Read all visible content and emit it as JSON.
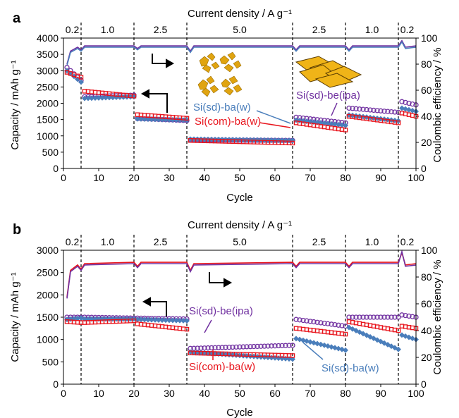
{
  "colors": {
    "purple": "#7030a0",
    "blue": "#4a7ebb",
    "red": "#e8141c",
    "black": "#000000"
  },
  "chart_data": [
    {
      "type": "scatter",
      "panel_label": "a",
      "top_axis_title": "Current density / A g⁻¹",
      "xlabel": "Cycle",
      "ylabel": "Capacity / mAh g⁻¹",
      "y2label": "Coulombic efficiency / %",
      "xlim": [
        0,
        100
      ],
      "ylim": [
        0,
        4000
      ],
      "y2lim": [
        0,
        100
      ],
      "x_ticks": [
        0,
        10,
        20,
        30,
        40,
        50,
        60,
        70,
        80,
        90,
        100
      ],
      "y_ticks": [
        0,
        500,
        1000,
        1500,
        2000,
        2500,
        3000,
        3500,
        4000
      ],
      "y2_ticks": [
        0,
        20,
        40,
        60,
        80,
        100
      ],
      "segment_boundaries": [
        5,
        20,
        35,
        65,
        80,
        95
      ],
      "segments": [
        {
          "label": "0.2",
          "x": 2.5
        },
        {
          "label": "1.0",
          "x": 12.5
        },
        {
          "label": "2.5",
          "x": 27.5
        },
        {
          "label": "5.0",
          "x": 50
        },
        {
          "label": "2.5",
          "x": 72.5
        },
        {
          "label": "1.0",
          "x": 87.5
        },
        {
          "label": "0.2",
          "x": 97.5
        }
      ],
      "series": [
        {
          "name": "Si(sd)-be(ipa)",
          "color_key": "purple",
          "marker": "circle",
          "segments": [
            [
              3100,
              2700
            ],
            [
              2200,
              2250
            ],
            [
              1530,
              1470
            ],
            [
              880,
              860
            ],
            [
              1570,
              1400
            ],
            [
              1850,
              1720
            ],
            [
              2050,
              1950
            ]
          ]
        },
        {
          "name": "Si(sd)-ba(w)",
          "color_key": "blue",
          "marker": "diamond",
          "segments": [
            [
              3000,
              2650
            ],
            [
              2150,
              2200
            ],
            [
              1520,
              1480
            ],
            [
              900,
              860
            ],
            [
              1480,
              1320
            ],
            [
              1640,
              1460
            ],
            [
              1850,
              1750
            ]
          ]
        },
        {
          "name": "Si(com)-ba(w)",
          "color_key": "red",
          "marker": "square",
          "segments": [
            [
              2950,
              2800
            ],
            [
              2370,
              2220
            ],
            [
              1650,
              1540
            ],
            [
              860,
              780
            ],
            [
              1400,
              1180
            ],
            [
              1600,
              1400
            ],
            [
              1700,
              1600
            ]
          ]
        }
      ],
      "ce_series": [
        {
          "color_key": "purple",
          "x": [
            1,
            2,
            4,
            5,
            6,
            20,
            21,
            22,
            35,
            36,
            37,
            65,
            66,
            67,
            80,
            81,
            82,
            95,
            96,
            97,
            100
          ],
          "y": [
            80,
            90,
            93,
            91,
            94,
            94,
            92,
            94,
            94,
            90,
            94,
            94,
            91,
            94,
            94,
            91,
            94,
            94,
            98,
            93,
            94
          ]
        },
        {
          "color_key": "blue",
          "x": [
            1,
            2,
            4,
            5,
            6,
            20,
            21,
            22,
            35,
            36,
            37,
            65,
            66,
            67,
            80,
            81,
            82,
            95,
            96,
            97,
            100
          ],
          "y": [
            79,
            89,
            92,
            90,
            93,
            93,
            91,
            93,
            93,
            89,
            93,
            93,
            90,
            93,
            93,
            90,
            93,
            93,
            97,
            92,
            93
          ]
        }
      ],
      "annotations": [
        {
          "text": "Si(sd)-be(ipa)",
          "color_key": "purple"
        },
        {
          "text": "Si(sd)-ba(w)",
          "color_key": "blue"
        },
        {
          "text": "Si(com)-ba(w)",
          "color_key": "red"
        }
      ]
    },
    {
      "type": "scatter",
      "panel_label": "b",
      "top_axis_title": "Current density / A g⁻¹",
      "xlabel": "Cycle",
      "ylabel": "Capacity / mAh g⁻¹",
      "y2label": "Coulombic efficiency / %",
      "xlim": [
        0,
        100
      ],
      "ylim": [
        0,
        3000
      ],
      "y2lim": [
        0,
        100
      ],
      "x_ticks": [
        0,
        10,
        20,
        30,
        40,
        50,
        60,
        70,
        80,
        90,
        100
      ],
      "y_ticks": [
        0,
        500,
        1000,
        1500,
        2000,
        2500,
        3000
      ],
      "y2_ticks": [
        0,
        20,
        40,
        60,
        80,
        100
      ],
      "segment_boundaries": [
        5,
        20,
        35,
        65,
        80,
        95
      ],
      "segments": [
        {
          "label": "0.2",
          "x": 2.5
        },
        {
          "label": "1.0",
          "x": 12.5
        },
        {
          "label": "2.5",
          "x": 27.5
        },
        {
          "label": "5.0",
          "x": 50
        },
        {
          "label": "2.5",
          "x": 72.5
        },
        {
          "label": "1.0",
          "x": 87.5
        },
        {
          "label": "0.2",
          "x": 97.5
        }
      ],
      "series": [
        {
          "name": "Si(sd)-be(ipa)",
          "color_key": "purple",
          "marker": "circle",
          "segments": [
            [
              1500,
              1500
            ],
            [
              1500,
              1480
            ],
            [
              1480,
              1460
            ],
            [
              800,
              870
            ],
            [
              1450,
              1300
            ],
            [
              1500,
              1500
            ],
            [
              1550,
              1500
            ]
          ]
        },
        {
          "name": "Si(sd)-ba(w)",
          "color_key": "blue",
          "marker": "diamond",
          "segments": [
            [
              1450,
              1480
            ],
            [
              1460,
              1460
            ],
            [
              1450,
              1420
            ],
            [
              720,
              560
            ],
            [
              1020,
              760
            ],
            [
              1270,
              780
            ],
            [
              1100,
              1000
            ]
          ]
        },
        {
          "name": "Si(com)-ba(w)",
          "color_key": "red",
          "marker": "square",
          "segments": [
            [
              1400,
              1380
            ],
            [
              1380,
              1420
            ],
            [
              1350,
              1230
            ],
            [
              700,
              640
            ],
            [
              1250,
              1120
            ],
            [
              1400,
              1200
            ],
            [
              1300,
              1250
            ]
          ]
        }
      ],
      "ce_series": [
        {
          "color_key": "red",
          "x": [
            1,
            2,
            4,
            5,
            6,
            20,
            21,
            22,
            35,
            36,
            37,
            65,
            66,
            67,
            80,
            81,
            82,
            95,
            96,
            97,
            100
          ],
          "y": [
            65,
            85,
            89,
            86,
            90,
            91,
            88,
            91,
            91,
            85,
            90,
            91,
            88,
            91,
            91,
            88,
            91,
            91,
            98,
            89,
            90
          ]
        },
        {
          "color_key": "purple",
          "x": [
            1,
            2,
            4,
            5,
            6,
            20,
            21,
            22,
            35,
            36,
            37,
            65,
            66,
            67,
            80,
            81,
            82,
            95,
            96,
            97,
            100
          ],
          "y": [
            64,
            84,
            88,
            85,
            89,
            90,
            87,
            90,
            90,
            84,
            89,
            90,
            87,
            90,
            90,
            87,
            90,
            90,
            99,
            88,
            89
          ]
        }
      ],
      "annotations": [
        {
          "text": "Si(sd)-be(ipa)",
          "color_key": "purple"
        },
        {
          "text": "Si(com)-ba(w)",
          "color_key": "red"
        },
        {
          "text": "Si(sd)-ba(w)",
          "color_key": "blue"
        }
      ]
    }
  ]
}
